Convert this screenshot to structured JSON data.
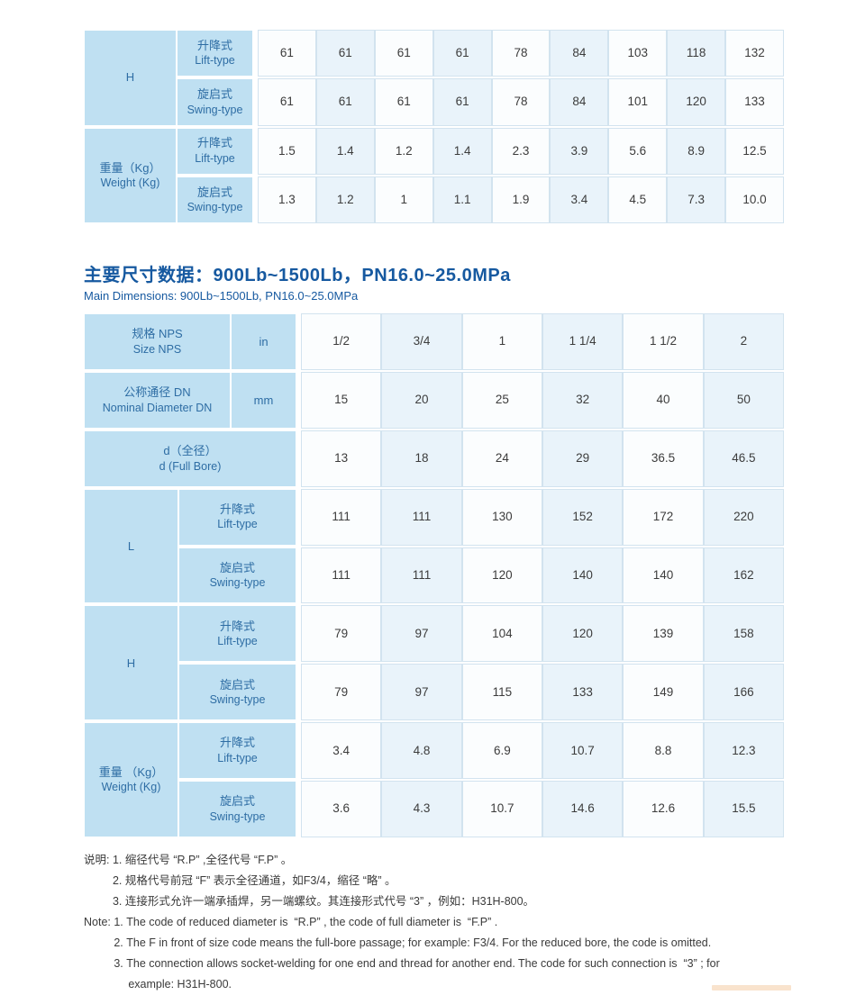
{
  "title": {
    "cn": "主要尺寸数据：900Lb~1500Lb，PN16.0~25.0MPa",
    "en": "Main Dimensions: 900Lb~1500Lb, PN16.0~25.0MPa"
  },
  "colors": {
    "header_blue": "#bfe0f2",
    "cell_alt_blue": "#e9f3fa",
    "cell_white": "#fbfdfe",
    "cell_border": "#d2e3ef",
    "title_blue": "#1659a0",
    "header_text_blue": "#2e6da4",
    "body_text": "#3c3c3c",
    "footer_accent": "#f7dcc0"
  },
  "table1": {
    "rows": [
      {
        "group": {
          "cn": "H",
          "en": ""
        },
        "span": 2,
        "type": {
          "cn": "升降式",
          "en": "Lift-type"
        },
        "values": [
          "61",
          "61",
          "61",
          "61",
          "78",
          "84",
          "103",
          "118",
          "132"
        ]
      },
      {
        "type": {
          "cn": "旋启式",
          "en": "Swing-type"
        },
        "values": [
          "61",
          "61",
          "61",
          "61",
          "78",
          "84",
          "101",
          "120",
          "133"
        ]
      },
      {
        "group": {
          "cn": "重量（Kg）",
          "en": "Weight (Kg)"
        },
        "span": 2,
        "type": {
          "cn": "升降式",
          "en": "Lift-type"
        },
        "values": [
          "1.5",
          "1.4",
          "1.2",
          "1.4",
          "2.3",
          "3.9",
          "5.6",
          "8.9",
          "12.5"
        ]
      },
      {
        "type": {
          "cn": "旋启式",
          "en": "Swing-type"
        },
        "values": [
          "1.3",
          "1.2",
          "1",
          "1.1",
          "1.9",
          "3.4",
          "4.5",
          "7.3",
          "10.0"
        ]
      }
    ]
  },
  "table2": {
    "rows": [
      {
        "kind": "unit",
        "label": {
          "cn": "规格 NPS",
          "en": "Size NPS"
        },
        "unit": "in",
        "values": [
          "1/2",
          "3/4",
          "1",
          "1 1/4",
          "1 1/2",
          "2"
        ]
      },
      {
        "kind": "unit",
        "label": {
          "cn": "公称通径 DN",
          "en": "Nominal Diameter DN"
        },
        "unit": "mm",
        "values": [
          "15",
          "20",
          "25",
          "32",
          "40",
          "50"
        ]
      },
      {
        "kind": "full",
        "label": {
          "cn": "d（全径）",
          "en": "d (Full Bore)"
        },
        "values": [
          "13",
          "18",
          "24",
          "29",
          "36.5",
          "46.5"
        ]
      },
      {
        "kind": "type",
        "group": {
          "cn": "L",
          "en": ""
        },
        "span": 2,
        "type": {
          "cn": "升降式",
          "en": "Lift-type"
        },
        "values": [
          "111",
          "111",
          "130",
          "152",
          "172",
          "220"
        ]
      },
      {
        "kind": "type",
        "type": {
          "cn": "旋启式",
          "en": "Swing-type"
        },
        "values": [
          "111",
          "111",
          "120",
          "140",
          "140",
          "162"
        ]
      },
      {
        "kind": "type",
        "group": {
          "cn": "H",
          "en": ""
        },
        "span": 2,
        "type": {
          "cn": "升降式",
          "en": "Lift-type"
        },
        "values": [
          "79",
          "97",
          "104",
          "120",
          "139",
          "158"
        ]
      },
      {
        "kind": "type",
        "type": {
          "cn": "旋启式",
          "en": "Swing-type"
        },
        "values": [
          "79",
          "97",
          "115",
          "133",
          "149",
          "166"
        ]
      },
      {
        "kind": "type",
        "group": {
          "cn": "重量 （Kg）",
          "en": "Weight (Kg)"
        },
        "span": 2,
        "type": {
          "cn": "升降式",
          "en": "Lift-type"
        },
        "values": [
          "3.4",
          "4.8",
          "6.9",
          "10.7",
          "8.8",
          "12.3"
        ]
      },
      {
        "kind": "type",
        "type": {
          "cn": "旋启式",
          "en": "Swing-type"
        },
        "values": [
          "3.6",
          "4.3",
          "10.7",
          "14.6",
          "12.6",
          "15.5"
        ]
      }
    ]
  },
  "notes_cn": {
    "prefix": "说明: ",
    "items": [
      {
        "num": "1. ",
        "text": "缩径代号 “R.P” ,全径代号 “F.P” 。",
        "cont": false
      },
      {
        "num": "2. ",
        "text": "规格代号前冠 “F” 表示全径通道，如F3/4，缩径 “略” 。",
        "cont": false
      },
      {
        "num": "3. ",
        "text": "连接形式允许一端承插焊，另一端螺纹。其连接形式代号 “3” ，例如：H31H-800。",
        "cont": false
      }
    ]
  },
  "notes_en": {
    "prefix": "Note: ",
    "items": [
      {
        "num": "1. ",
        "text": "The code of reduced diameter is  “R.P” , the code of full diameter is  “F.P” .",
        "cont": false
      },
      {
        "num": "2. ",
        "text": "The F in front of size code means the full-bore passage; for example: F3/4. For the reduced bore, the code is omitted.",
        "cont": false
      },
      {
        "num": "3. ",
        "text": "The connection allows socket-welding for one end and thread for another end. The code for such connection is  “3” ; for",
        "cont": false
      },
      {
        "num": "",
        "text": "example: H31H-800.",
        "cont": true
      }
    ]
  }
}
